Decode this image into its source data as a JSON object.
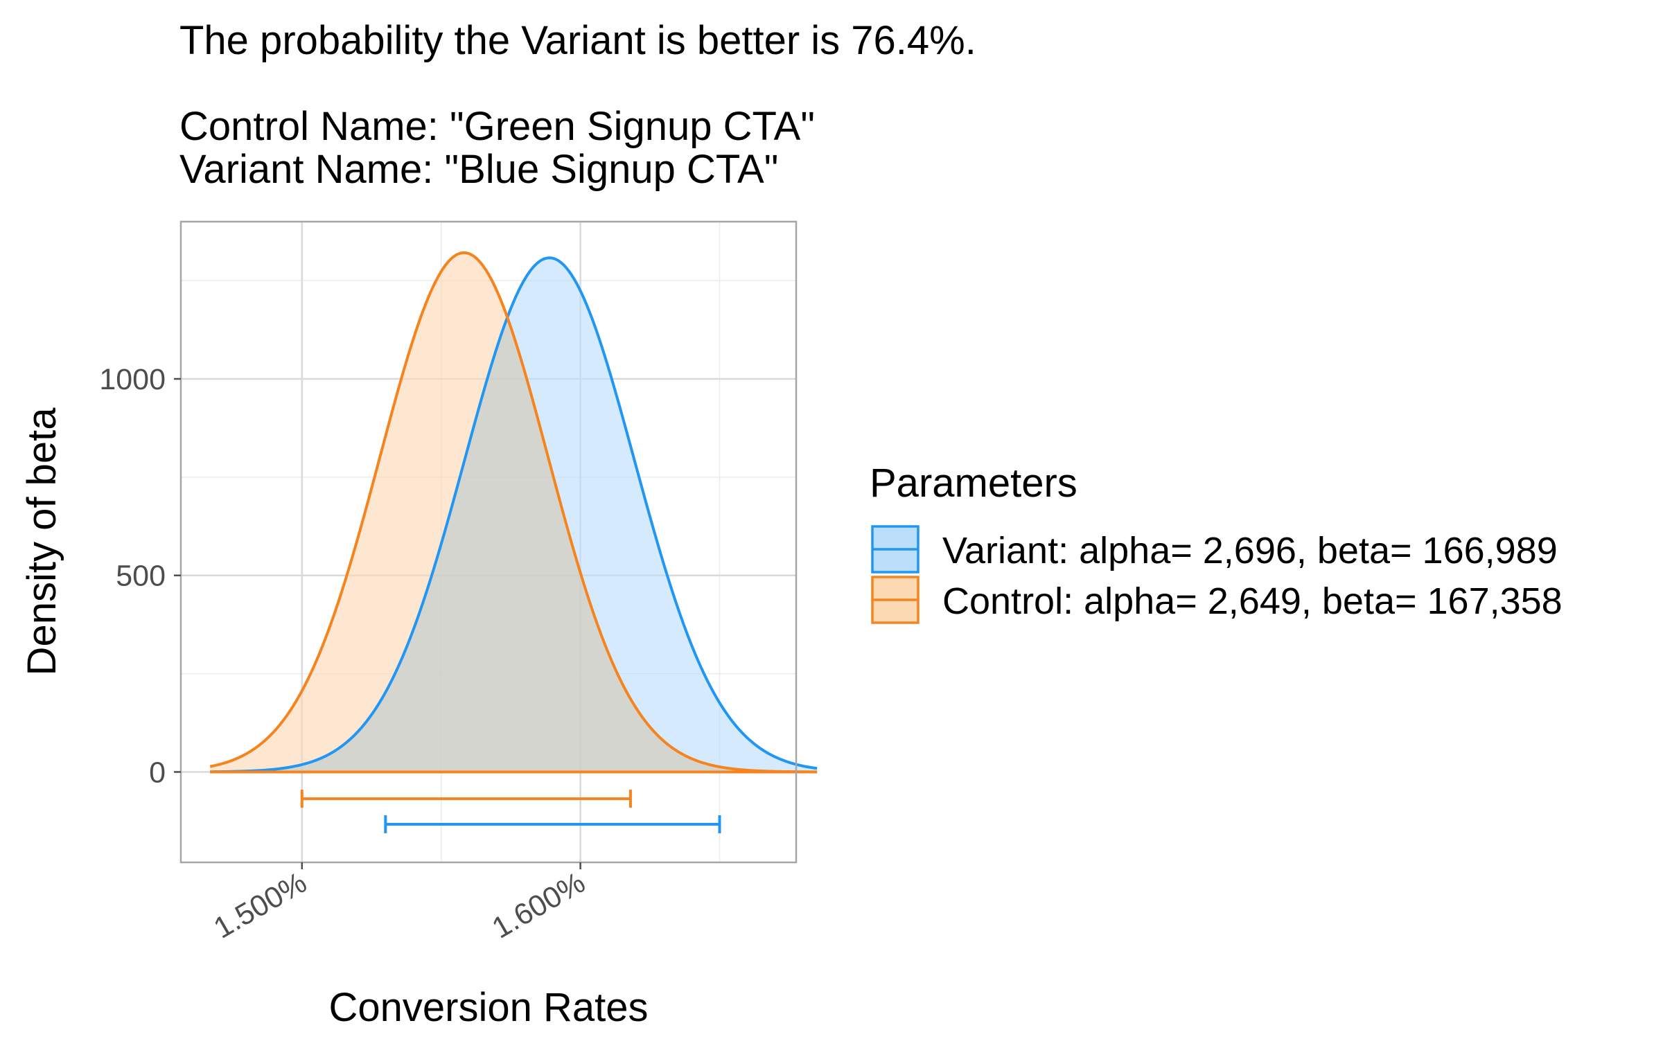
{
  "title_lines": [
    "The probability the Variant is better is 76.4%.",
    "",
    "Control Name: \"Green Signup CTA\"",
    "Variant Name: \"Blue Signup CTA\""
  ],
  "chart_data": {
    "type": "area",
    "xlabel": "Conversion Rates",
    "ylabel": "Density of beta",
    "xlim": [
      0.014565,
      0.016775
    ],
    "ylim": [
      -230,
      1400
    ],
    "x_ticks": [
      0.015,
      0.016
    ],
    "x_tick_labels": [
      "1.500%",
      "1.600%"
    ],
    "y_ticks": [
      0,
      500,
      1000
    ],
    "y_tick_labels": [
      "0",
      "500",
      "1000"
    ],
    "grid": true,
    "legend": {
      "title": "Parameters",
      "position": "right",
      "entries": [
        "Variant: alpha= 2,696, beta= 166,989",
        "Control: alpha= 2,649, beta= 167,358"
      ]
    },
    "series": [
      {
        "name": "Variant: alpha= 2,696, beta= 166,989",
        "alpha": 2696,
        "beta": 166989,
        "mean": 0.015889,
        "peak_density": 1308,
        "x_range": [
          0.01467,
          0.01685
        ],
        "interval": [
          0.0153,
          0.0165
        ],
        "line_color": "#2196F3",
        "fill_color": "#BBDEFB"
      },
      {
        "name": "Control: alpha= 2,649, beta= 167,358",
        "alpha": 2649,
        "beta": 167358,
        "mean": 0.015582,
        "peak_density": 1321,
        "x_range": [
          0.01467,
          0.01685
        ],
        "interval": [
          0.015,
          0.01618
        ],
        "line_color": "#F5841F",
        "fill_color": "#FCD9B3"
      }
    ]
  }
}
